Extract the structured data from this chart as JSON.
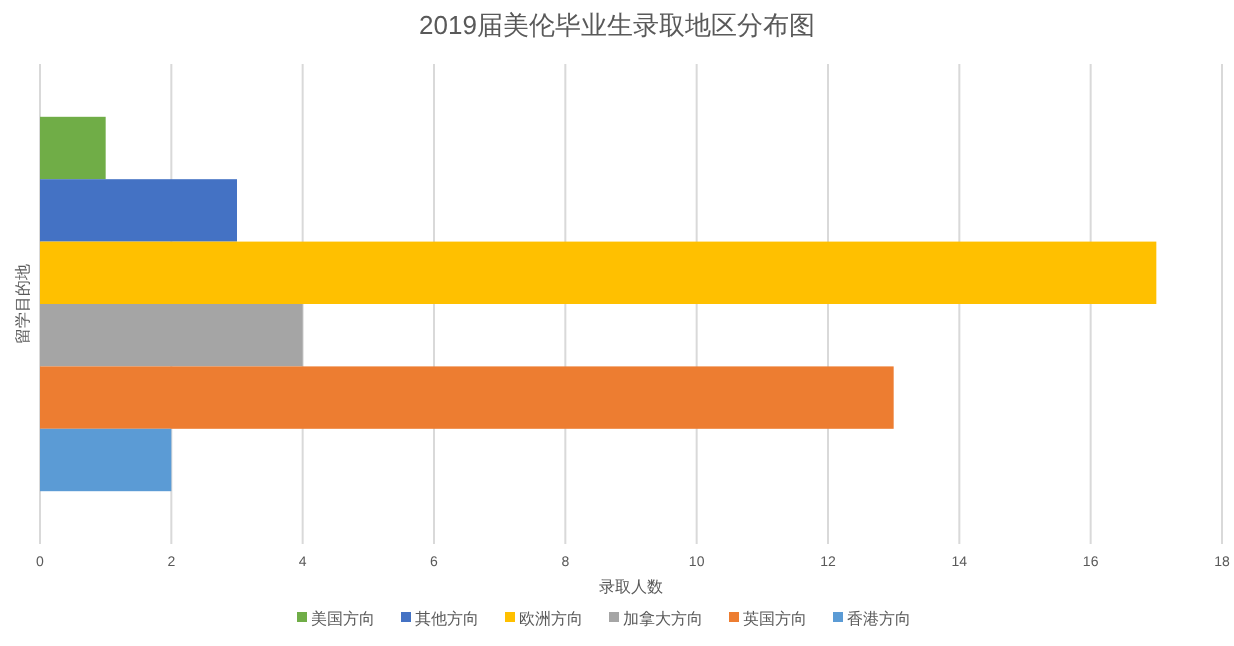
{
  "chart_data": {
    "type": "bar",
    "orientation": "horizontal",
    "title": "2019届美伦毕业生录取地区分布图",
    "xlabel": "录取人数",
    "ylabel": "留学目的地",
    "categories": [
      null
    ],
    "series": [
      {
        "name": "美国方向",
        "color": "#70ad47",
        "values": [
          1
        ]
      },
      {
        "name": "其他方向",
        "color": "#4472c4",
        "values": [
          3
        ]
      },
      {
        "name": "欧洲方向",
        "color": "#ffc000",
        "values": [
          17
        ]
      },
      {
        "name": "加拿大方向",
        "color": "#a5a5a5",
        "values": [
          4
        ]
      },
      {
        "name": "英国方向",
        "color": "#ed7d31",
        "values": [
          13
        ]
      },
      {
        "name": "香港方向",
        "color": "#5b9bd5",
        "values": [
          2
        ]
      }
    ],
    "xlim": [
      0,
      18
    ],
    "xticks": [
      0,
      2,
      4,
      6,
      8,
      10,
      12,
      14,
      16,
      18
    ],
    "grid": "x",
    "legend": "bottom"
  }
}
